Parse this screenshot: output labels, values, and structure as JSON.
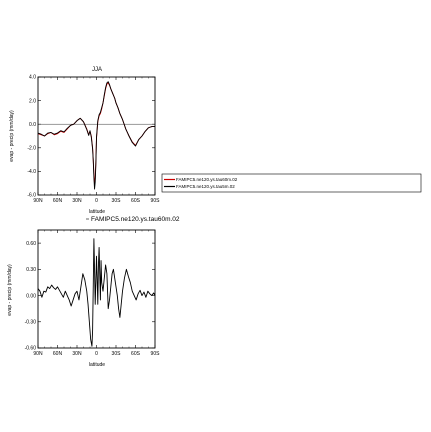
{
  "chart_data": [
    {
      "type": "line",
      "title": "JJA",
      "xlabel": "latitude",
      "ylabel": "evap - precip (mm/day)",
      "xlim": [
        90,
        -90
      ],
      "ylim": [
        -6.0,
        4.0
      ],
      "x_ticks": [
        90,
        60,
        30,
        0,
        -30,
        -60,
        -90
      ],
      "x_tick_labels": [
        "90N",
        "60N",
        "30N",
        "0",
        "30S",
        "60S",
        "90S"
      ],
      "y_ticks": [
        -6,
        -4,
        -2,
        0,
        2,
        4
      ],
      "y_tick_labels": [
        "-6.0",
        "-4.0",
        "-2.0",
        "0.0",
        "2.0",
        "4.0"
      ],
      "legend_position": "right",
      "series": [
        {
          "name": "FAMIPC5.ne120.ys.tau60m.02",
          "color": "#cc0000",
          "x": [
            90,
            85,
            80,
            75,
            70,
            65,
            60,
            55,
            50,
            45,
            40,
            35,
            30,
            25,
            20,
            15,
            12,
            10,
            8,
            6,
            5,
            4,
            3,
            2,
            1,
            0,
            -2,
            -4,
            -6,
            -8,
            -10,
            -12,
            -14,
            -16,
            -18,
            -20,
            -22,
            -25,
            -28,
            -30,
            -33,
            -36,
            -40,
            -45,
            -50,
            -55,
            -60,
            -65,
            -70,
            -75,
            -80,
            -85,
            -90
          ],
          "y": [
            -0.8,
            -0.9,
            -1.0,
            -0.8,
            -0.7,
            -0.9,
            -0.8,
            -0.6,
            -0.7,
            -0.4,
            -0.1,
            0.0,
            0.3,
            0.5,
            0.2,
            -0.4,
            -0.9,
            -0.6,
            -1.0,
            -2.0,
            -3.0,
            -4.2,
            -5.1,
            -4.6,
            -3.2,
            -1.2,
            0.2,
            0.7,
            0.9,
            1.3,
            1.8,
            2.4,
            3.0,
            3.4,
            3.5,
            3.3,
            3.0,
            2.6,
            2.2,
            1.8,
            1.4,
            0.9,
            0.4,
            -0.4,
            -1.0,
            -1.5,
            -1.8,
            -1.3,
            -1.0,
            -0.6,
            -0.3,
            -0.2,
            -0.2
          ]
        },
        {
          "name": "FAMIPC5.ne120.ys.tau5m.02",
          "color": "#000000",
          "x": [
            90,
            85,
            80,
            75,
            70,
            65,
            60,
            55,
            50,
            45,
            40,
            35,
            30,
            25,
            20,
            15,
            12,
            10,
            8,
            6,
            5,
            4,
            3,
            2,
            1,
            0,
            -2,
            -4,
            -6,
            -8,
            -10,
            -12,
            -14,
            -16,
            -18,
            -20,
            -22,
            -25,
            -28,
            -30,
            -33,
            -36,
            -40,
            -45,
            -50,
            -55,
            -60,
            -65,
            -70,
            -75,
            -80,
            -85,
            -90
          ],
          "y": [
            -0.75,
            -0.85,
            -1.0,
            -0.75,
            -0.7,
            -0.85,
            -0.75,
            -0.55,
            -0.65,
            -0.35,
            -0.1,
            0.0,
            0.3,
            0.5,
            0.2,
            -0.45,
            -0.95,
            -0.55,
            -1.1,
            -2.1,
            -3.1,
            -4.5,
            -5.5,
            -4.9,
            -3.4,
            -1.1,
            0.3,
            0.8,
            1.0,
            1.4,
            1.8,
            2.5,
            3.1,
            3.5,
            3.6,
            3.35,
            3.0,
            2.6,
            2.2,
            1.8,
            1.4,
            0.9,
            0.4,
            -0.4,
            -1.0,
            -1.55,
            -1.85,
            -1.3,
            -1.0,
            -0.6,
            -0.3,
            -0.2,
            -0.2
          ]
        }
      ]
    },
    {
      "type": "line",
      "title": "FAMIPC5.ne120.ys.tau60m.02",
      "xlabel": "latitude",
      "ylabel": "evap - precip (mm/day)",
      "xlim": [
        90,
        -90
      ],
      "ylim": [
        -0.6,
        0.75
      ],
      "x_ticks": [
        90,
        60,
        30,
        0,
        -30,
        -60,
        -90
      ],
      "x_tick_labels": [
        "90N",
        "60N",
        "30N",
        "0",
        "30S",
        "60S",
        "90S"
      ],
      "y_ticks": [
        -0.6,
        -0.3,
        0.0,
        0.3,
        0.6
      ],
      "y_tick_labels": [
        "-0.60",
        "-0.30",
        "0.00",
        "0.30",
        "0.60"
      ],
      "series": [
        {
          "name": "",
          "color": "#000000",
          "x": [
            90,
            87,
            84,
            81,
            78,
            75,
            72,
            69,
            66,
            63,
            60,
            57,
            54,
            51,
            48,
            45,
            42,
            39,
            36,
            33,
            30,
            27,
            24,
            21,
            18,
            15,
            13,
            11,
            9,
            7,
            6,
            5,
            4,
            3,
            2,
            1,
            0,
            -1,
            -2,
            -3,
            -4,
            -5,
            -6,
            -7,
            -8,
            -10,
            -12,
            -14,
            -16,
            -18,
            -20,
            -22,
            -24,
            -26,
            -28,
            -30,
            -32,
            -34,
            -36,
            -38,
            -40,
            -43,
            -46,
            -49,
            -52,
            -55,
            -58,
            -61,
            -64,
            -67,
            -70,
            -73,
            -76,
            -79,
            -82,
            -85,
            -88,
            -90
          ],
          "y": [
            0.08,
            0.05,
            -0.02,
            0.05,
            0.04,
            0.1,
            0.08,
            0.12,
            0.09,
            0.07,
            0.1,
            0.06,
            0.02,
            -0.02,
            0.05,
            0.0,
            -0.05,
            -0.12,
            -0.05,
            0.02,
            0.05,
            -0.05,
            0.1,
            0.25,
            0.18,
            0.05,
            -0.1,
            -0.3,
            -0.5,
            -0.58,
            -0.4,
            0.1,
            0.65,
            0.3,
            -0.1,
            0.15,
            0.45,
            0.2,
            -0.1,
            0.35,
            0.55,
            0.25,
            -0.05,
            0.4,
            0.15,
            0.05,
            0.2,
            0.35,
            0.25,
            -0.15,
            -0.05,
            0.1,
            0.25,
            0.3,
            0.2,
            0.1,
            0.0,
            -0.15,
            -0.25,
            -0.1,
            0.05,
            0.2,
            0.3,
            0.22,
            0.15,
            0.05,
            0.0,
            -0.05,
            0.02,
            0.06,
            0.0,
            0.04,
            -0.02,
            0.05,
            0.02,
            0.0,
            0.03,
            0.0
          ]
        }
      ]
    }
  ]
}
